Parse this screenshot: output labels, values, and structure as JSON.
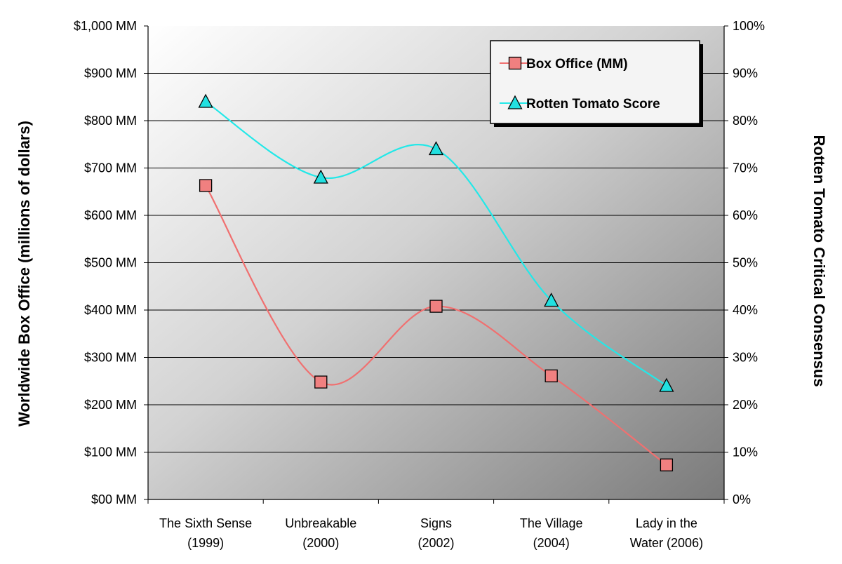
{
  "chart_data": {
    "type": "line",
    "categories": [
      [
        "The Sixth Sense",
        "(1999)"
      ],
      [
        "Unbreakable",
        "(2000)"
      ],
      [
        "Signs",
        "(2002)"
      ],
      [
        "The Village",
        "(2004)"
      ],
      [
        "Lady in the",
        "Water (2006)"
      ]
    ],
    "y_left": {
      "label": "Worldwide Box Office (millions of dollars)",
      "ylim": [
        0,
        1000
      ],
      "ticks": [
        0,
        100,
        200,
        300,
        400,
        500,
        600,
        700,
        800,
        900,
        1000
      ],
      "tick_labels": [
        "$00 MM",
        "$100 MM",
        "$200 MM",
        "$300 MM",
        "$400 MM",
        "$500 MM",
        "$600 MM",
        "$700 MM",
        "$800 MM",
        "$900 MM",
        "$1,000 MM"
      ]
    },
    "y_right": {
      "label": "Rotten Tomato Critical Consensus",
      "ylim": [
        0,
        100
      ],
      "ticks": [
        0,
        10,
        20,
        30,
        40,
        50,
        60,
        70,
        80,
        90,
        100
      ],
      "tick_labels": [
        "0%",
        "10%",
        "20%",
        "30%",
        "40%",
        "50%",
        "60%",
        "70%",
        "80%",
        "90%",
        "100%"
      ]
    },
    "series": [
      {
        "name": "Box Office (MM)",
        "axis": "left",
        "values": [
          663,
          248,
          408,
          261,
          73
        ],
        "color": "#f07070",
        "marker_fill": "#f08080",
        "marker": "square"
      },
      {
        "name": "Rotten Tomato Score",
        "axis": "right",
        "values": [
          84,
          68,
          74,
          42,
          24
        ],
        "color": "#22e8e8",
        "marker_fill": "#22e0e0",
        "marker": "triangle"
      }
    ],
    "grid": true,
    "legend_position": "top-right",
    "smooth": true
  }
}
